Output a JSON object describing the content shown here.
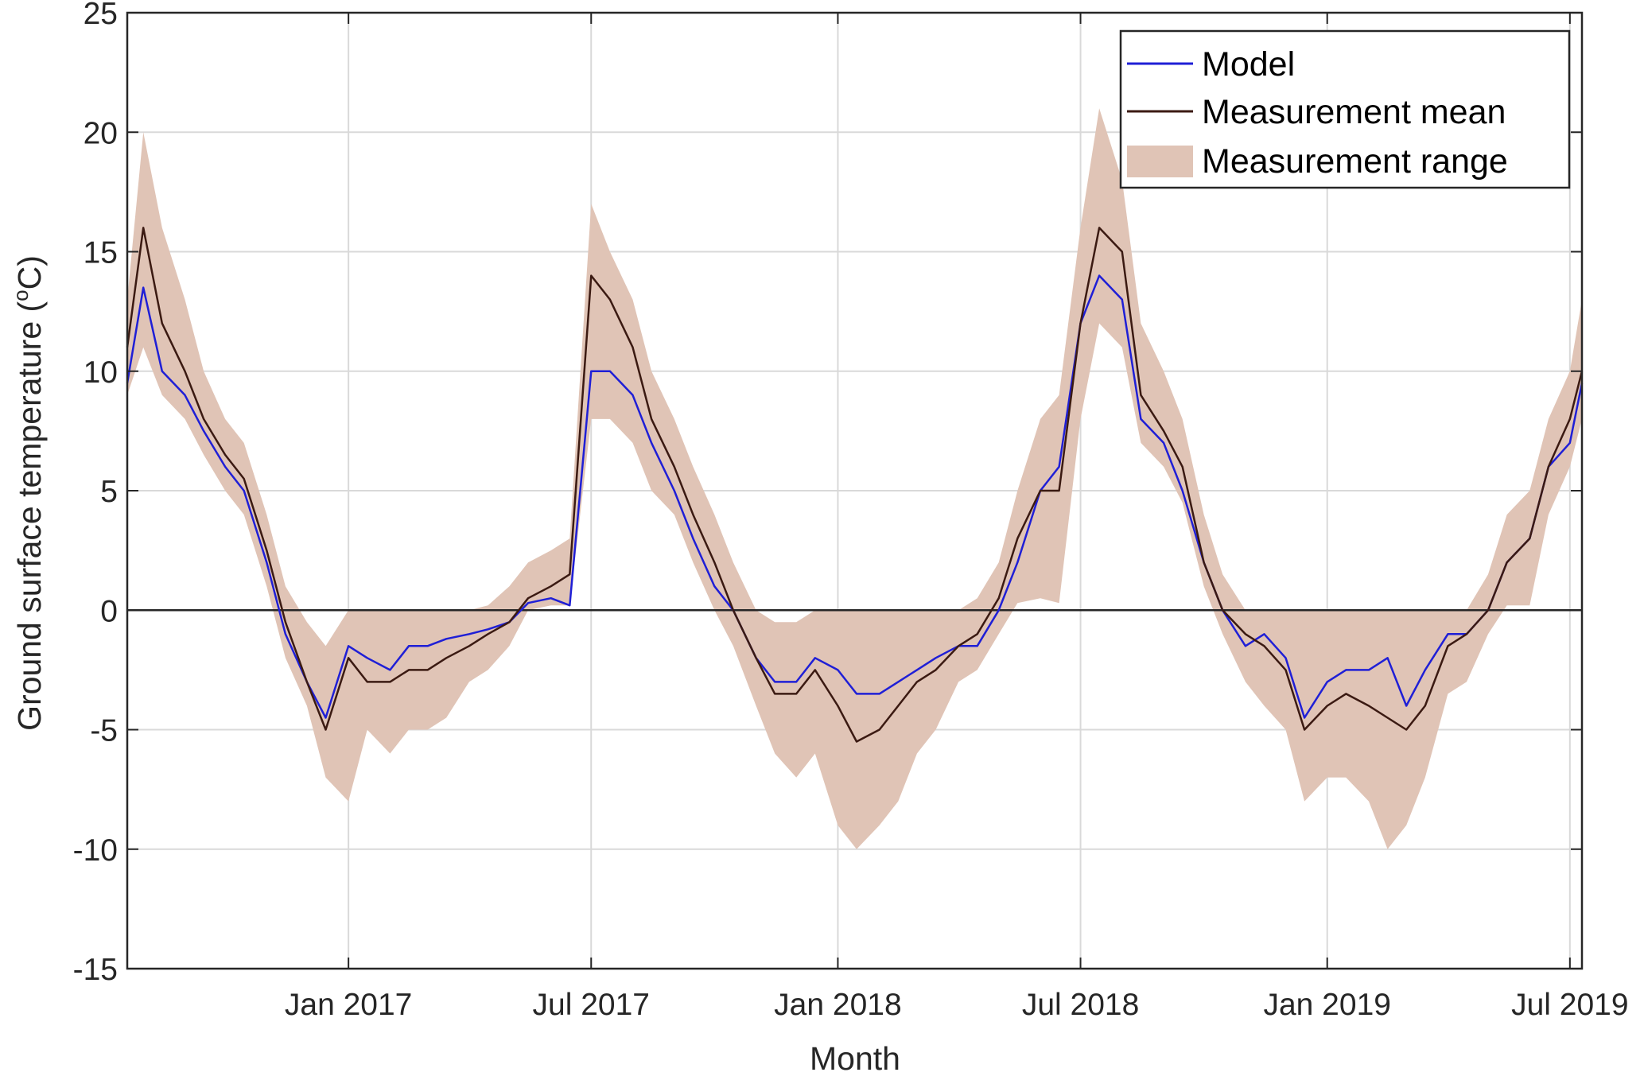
{
  "chart_data": {
    "type": "line",
    "title": "",
    "xlabel": "Month",
    "ylabel": "Ground surface temperature (°C)",
    "ylabel_parts": {
      "main": "Ground surface temperature (",
      "degree": "o",
      "unit": "C)"
    },
    "x_range": [
      "2016-07-20",
      "2019-07-10"
    ],
    "ylim": [
      -15,
      25
    ],
    "yticks": [
      -15,
      -10,
      -5,
      0,
      5,
      10,
      15,
      20,
      25
    ],
    "ytick_labels": [
      "-15",
      "-10",
      "-5",
      "0",
      "5",
      "10",
      "15",
      "20",
      "25"
    ],
    "xticks": [
      "2017-01-01",
      "2017-07-01",
      "2018-01-01",
      "2018-07-01",
      "2019-01-01",
      "2019-07-01"
    ],
    "xtick_labels": [
      "Jan 2017",
      "Jul 2017",
      "Jan 2018",
      "Jul 2018",
      "Jan 2019",
      "Jul 2019"
    ],
    "grid": true,
    "zero_line": true,
    "legend_placement": "top-right",
    "colors": {
      "model": "#1f1fd6",
      "mean": "#3b1a12",
      "range": "#e0c4b6",
      "grid": "#d9d9d9",
      "axis": "#262626"
    },
    "series": [
      {
        "name": "Model",
        "kind": "line",
        "x": [
          "2016-07-20",
          "2016-08-01",
          "2016-08-15",
          "2016-09-01",
          "2016-09-15",
          "2016-10-01",
          "2016-10-15",
          "2016-11-01",
          "2016-11-15",
          "2016-12-01",
          "2016-12-15",
          "2017-01-01",
          "2017-01-15",
          "2017-02-01",
          "2017-02-15",
          "2017-03-01",
          "2017-03-15",
          "2017-04-01",
          "2017-04-15",
          "2017-05-01",
          "2017-05-15",
          "2017-06-01",
          "2017-06-15",
          "2017-07-01",
          "2017-07-15",
          "2017-08-01",
          "2017-08-15",
          "2017-09-01",
          "2017-09-15",
          "2017-10-01",
          "2017-10-15",
          "2017-11-01",
          "2017-11-15",
          "2017-12-01",
          "2017-12-15",
          "2018-01-01",
          "2018-01-15",
          "2018-02-01",
          "2018-02-15",
          "2018-03-01",
          "2018-03-15",
          "2018-04-01",
          "2018-04-15",
          "2018-05-01",
          "2018-05-15",
          "2018-06-01",
          "2018-06-15",
          "2018-07-01",
          "2018-07-15",
          "2018-08-01",
          "2018-08-15",
          "2018-09-01",
          "2018-09-15",
          "2018-10-01",
          "2018-10-15",
          "2018-11-01",
          "2018-11-15",
          "2018-12-01",
          "2018-12-15",
          "2019-01-01",
          "2019-01-15",
          "2019-02-01",
          "2019-02-15",
          "2019-03-01",
          "2019-03-15",
          "2019-04-01",
          "2019-04-15",
          "2019-05-01",
          "2019-05-15",
          "2019-06-01",
          "2019-06-15",
          "2019-07-01",
          "2019-07-10"
        ],
        "values": [
          9.5,
          13.5,
          10,
          9,
          7.5,
          6,
          5,
          2,
          -1,
          -3,
          -4.5,
          -1.5,
          -2,
          -2.5,
          -1.5,
          -1.5,
          -1.2,
          -1,
          -0.8,
          -0.5,
          0.3,
          0.5,
          0.2,
          10,
          10,
          9,
          7,
          5,
          3,
          1,
          0,
          -2,
          -3,
          -3,
          -2,
          -2.5,
          -3.5,
          -3.5,
          -3,
          -2.5,
          -2,
          -1.5,
          -1.5,
          0,
          2,
          5,
          6,
          12,
          14,
          13,
          8,
          7,
          5,
          2,
          0,
          -1.5,
          -1,
          -2,
          -4.5,
          -3,
          -2.5,
          -2.5,
          -2,
          -4,
          -2.5,
          -1,
          -1,
          0,
          2,
          3,
          6,
          7,
          9.5
        ]
      },
      {
        "name": "Measurement mean",
        "kind": "line",
        "x": [
          "2016-07-20",
          "2016-08-01",
          "2016-08-15",
          "2016-09-01",
          "2016-09-15",
          "2016-10-01",
          "2016-10-15",
          "2016-11-01",
          "2016-11-15",
          "2016-12-01",
          "2016-12-15",
          "2017-01-01",
          "2017-01-15",
          "2017-02-01",
          "2017-02-15",
          "2017-03-01",
          "2017-03-15",
          "2017-04-01",
          "2017-04-15",
          "2017-05-01",
          "2017-05-15",
          "2017-06-01",
          "2017-06-15",
          "2017-07-01",
          "2017-07-15",
          "2017-08-01",
          "2017-08-15",
          "2017-09-01",
          "2017-09-15",
          "2017-10-01",
          "2017-10-15",
          "2017-11-01",
          "2017-11-15",
          "2017-12-01",
          "2017-12-15",
          "2018-01-01",
          "2018-01-15",
          "2018-02-01",
          "2018-02-15",
          "2018-03-01",
          "2018-03-15",
          "2018-04-01",
          "2018-04-15",
          "2018-05-01",
          "2018-05-15",
          "2018-06-01",
          "2018-06-15",
          "2018-07-01",
          "2018-07-15",
          "2018-08-01",
          "2018-08-15",
          "2018-09-01",
          "2018-09-15",
          "2018-10-01",
          "2018-10-15",
          "2018-11-01",
          "2018-11-15",
          "2018-12-01",
          "2018-12-15",
          "2019-01-01",
          "2019-01-15",
          "2019-02-01",
          "2019-02-15",
          "2019-03-01",
          "2019-03-15",
          "2019-04-01",
          "2019-04-15",
          "2019-05-01",
          "2019-05-15",
          "2019-06-01",
          "2019-06-15",
          "2019-07-01",
          "2019-07-10"
        ],
        "values": [
          11,
          16,
          12,
          10,
          8,
          6.5,
          5.5,
          2.5,
          -0.5,
          -3,
          -5,
          -2,
          -3,
          -3,
          -2.5,
          -2.5,
          -2,
          -1.5,
          -1,
          -0.5,
          0.5,
          1,
          1.5,
          14,
          13,
          11,
          8,
          6,
          4,
          2,
          0,
          -2,
          -3.5,
          -3.5,
          -2.5,
          -4,
          -5.5,
          -5,
          -4,
          -3,
          -2.5,
          -1.5,
          -1,
          0.5,
          3,
          5,
          5,
          12,
          16,
          15,
          9,
          7.5,
          6,
          2,
          0,
          -1,
          -1.5,
          -2.5,
          -5,
          -4,
          -3.5,
          -4,
          -4.5,
          -5,
          -4,
          -1.5,
          -1,
          0,
          2,
          3,
          6,
          8,
          10
        ]
      },
      {
        "name": "Measurement range",
        "kind": "band",
        "x": [
          "2016-07-20",
          "2016-08-01",
          "2016-08-15",
          "2016-09-01",
          "2016-09-15",
          "2016-10-01",
          "2016-10-15",
          "2016-11-01",
          "2016-11-15",
          "2016-12-01",
          "2016-12-15",
          "2017-01-01",
          "2017-01-15",
          "2017-02-01",
          "2017-02-15",
          "2017-03-01",
          "2017-03-15",
          "2017-04-01",
          "2017-04-15",
          "2017-05-01",
          "2017-05-15",
          "2017-06-01",
          "2017-06-15",
          "2017-07-01",
          "2017-07-15",
          "2017-08-01",
          "2017-08-15",
          "2017-09-01",
          "2017-09-15",
          "2017-10-01",
          "2017-10-15",
          "2017-11-01",
          "2017-11-15",
          "2017-12-01",
          "2017-12-15",
          "2018-01-01",
          "2018-01-15",
          "2018-02-01",
          "2018-02-15",
          "2018-03-01",
          "2018-03-15",
          "2018-04-01",
          "2018-04-15",
          "2018-05-01",
          "2018-05-15",
          "2018-06-01",
          "2018-06-15",
          "2018-07-01",
          "2018-07-15",
          "2018-08-01",
          "2018-08-15",
          "2018-09-01",
          "2018-09-15",
          "2018-10-01",
          "2018-10-15",
          "2018-11-01",
          "2018-11-15",
          "2018-12-01",
          "2018-12-15",
          "2019-01-01",
          "2019-01-15",
          "2019-02-01",
          "2019-02-15",
          "2019-03-01",
          "2019-03-15",
          "2019-04-01",
          "2019-04-15",
          "2019-05-01",
          "2019-05-15",
          "2019-06-01",
          "2019-06-15",
          "2019-07-01",
          "2019-07-10"
        ],
        "low": [
          9,
          11,
          9,
          8,
          6.5,
          5,
          4,
          1,
          -2,
          -4,
          -7,
          -8,
          -5,
          -6,
          -5,
          -5,
          -4.5,
          -3,
          -2.5,
          -1.5,
          0,
          0.2,
          0.2,
          8,
          8,
          7,
          5,
          4,
          2,
          0,
          -1.5,
          -4,
          -6,
          -7,
          -6,
          -9,
          -10,
          -9,
          -8,
          -6,
          -5,
          -3,
          -2.5,
          -1,
          0.3,
          0.5,
          0.3,
          8,
          12,
          11,
          7,
          6,
          4.5,
          1,
          -1,
          -3,
          -4,
          -5,
          -8,
          -7,
          -7,
          -8,
          -10,
          -9,
          -7,
          -3.5,
          -3,
          -1,
          0.2,
          0.2,
          4,
          6,
          8
        ],
        "high": [
          13,
          20,
          16,
          13,
          10,
          8,
          7,
          4,
          1,
          -0.5,
          -1.5,
          0,
          0,
          0,
          0,
          0,
          0,
          0,
          0.2,
          1,
          2,
          2.5,
          3,
          17,
          15,
          13,
          10,
          8,
          6,
          4,
          2,
          0,
          -0.5,
          -0.5,
          0,
          0,
          0,
          0,
          0,
          0,
          0,
          0,
          0.5,
          2,
          5,
          8,
          9,
          16,
          21,
          18,
          12,
          10,
          8,
          4,
          1.5,
          0,
          0,
          0,
          0,
          0,
          0,
          0,
          0,
          0,
          0,
          0,
          0,
          1.5,
          4,
          5,
          8,
          10,
          13
        ]
      }
    ]
  },
  "legend": {
    "items": [
      {
        "label": "Model",
        "color": "#1f1fd6"
      },
      {
        "label": "Measurement mean",
        "color": "#3b1a12"
      },
      {
        "label": "Measurement range",
        "color": "#e0c4b6"
      }
    ]
  }
}
